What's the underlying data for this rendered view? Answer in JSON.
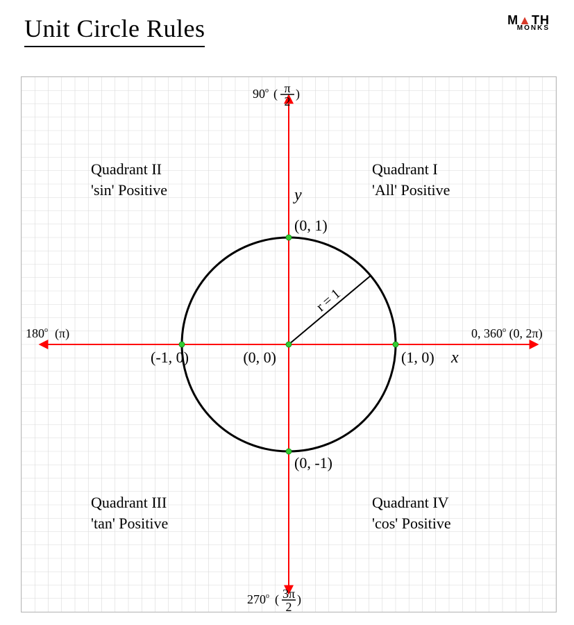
{
  "title": "Unit Circle Rules",
  "logo": {
    "line1_a": "M",
    "line1_b": "TH",
    "triangle": "▲",
    "line2": "MONKS"
  },
  "grid": {
    "cells": 40,
    "minor_color": "#d9d9d9",
    "border_color": "#b8b8b8",
    "stroke_width": 0.6
  },
  "axes": {
    "color": "#ff0000",
    "stroke_width": 2,
    "x_label": "x",
    "y_label": "y"
  },
  "circle": {
    "stroke": "#000000",
    "stroke_width": 3,
    "radius_units": 8
  },
  "radius_line": {
    "angle_deg": 40,
    "label": "r = 1",
    "stroke": "#000000",
    "stroke_width": 2
  },
  "points": {
    "color": "#33cc33",
    "radius_px": 4,
    "labels": {
      "center": "(0, 0)",
      "right": "(1, 0)",
      "top": "(0, 1)",
      "left": "(-1, 0)",
      "bottom": "(0, -1)"
    }
  },
  "angle_labels": {
    "top": {
      "deg": "90",
      "pi_num": "π",
      "pi_den": "2"
    },
    "left": {
      "deg": "180",
      "pi_plain": "(π)"
    },
    "bottom": {
      "deg": "270",
      "pi_num": "3π",
      "pi_den": "2"
    },
    "right": {
      "deg_a": "0",
      "deg_b": "360",
      "pi_plain": "(0, 2π)"
    }
  },
  "quadrants": {
    "q1": {
      "line1": "Quadrant I",
      "line2": "'All' Positive"
    },
    "q2": {
      "line1": "Quadrant II",
      "line2": "'sin' Positive"
    },
    "q3": {
      "line1": "Quadrant III",
      "line2": "'tan' Positive"
    },
    "q4": {
      "line1": "Quadrant IV",
      "line2": "'cos' Positive"
    }
  },
  "text_color": "#000000"
}
